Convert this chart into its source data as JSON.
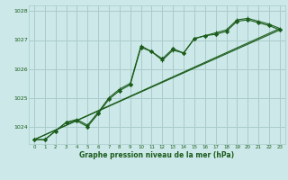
{
  "background_color": "#cce8e8",
  "grid_color": "#aacccc",
  "line_color": "#1a5c1a",
  "marker_color": "#1a5c1a",
  "title": "Graphe pression niveau de la mer (hPa)",
  "title_color": "#1a5c1a",
  "xlim": [
    -0.5,
    23.5
  ],
  "ylim": [
    1023.4,
    1028.2
  ],
  "yticks": [
    1024,
    1025,
    1026,
    1027,
    1028
  ],
  "xticks": [
    0,
    1,
    2,
    3,
    4,
    5,
    6,
    7,
    8,
    9,
    10,
    11,
    12,
    13,
    14,
    15,
    16,
    17,
    18,
    19,
    20,
    21,
    22,
    23
  ],
  "series1_x": [
    0,
    1,
    2,
    3,
    4,
    5,
    6,
    7,
    8,
    9,
    10,
    11,
    12,
    13,
    14,
    15,
    16,
    17,
    18,
    19,
    20,
    21,
    22,
    23
  ],
  "series1_y": [
    1023.55,
    1023.55,
    1023.85,
    1024.15,
    1024.2,
    1024.0,
    1024.45,
    1024.95,
    1025.25,
    1025.45,
    1026.75,
    1026.6,
    1026.35,
    1026.7,
    1026.55,
    1027.05,
    1027.15,
    1027.2,
    1027.3,
    1027.65,
    1027.7,
    1027.6,
    1027.5,
    1027.35
  ],
  "series2_x": [
    0,
    1,
    2,
    3,
    4,
    5,
    6,
    7,
    8,
    9,
    10,
    11,
    12,
    13,
    14,
    15,
    16,
    17,
    18,
    19,
    20,
    21,
    22,
    23
  ],
  "series2_y": [
    1023.55,
    1023.55,
    1023.85,
    1024.15,
    1024.25,
    1024.05,
    1024.5,
    1025.0,
    1025.3,
    1025.5,
    1026.8,
    1026.6,
    1026.3,
    1026.65,
    1026.55,
    1027.05,
    1027.15,
    1027.25,
    1027.35,
    1027.7,
    1027.75,
    1027.65,
    1027.55,
    1027.4
  ],
  "line1_x": [
    0,
    23
  ],
  "line1_y": [
    1023.55,
    1027.35
  ],
  "line2_x": [
    0,
    23
  ],
  "line2_y": [
    1023.55,
    1027.4
  ]
}
